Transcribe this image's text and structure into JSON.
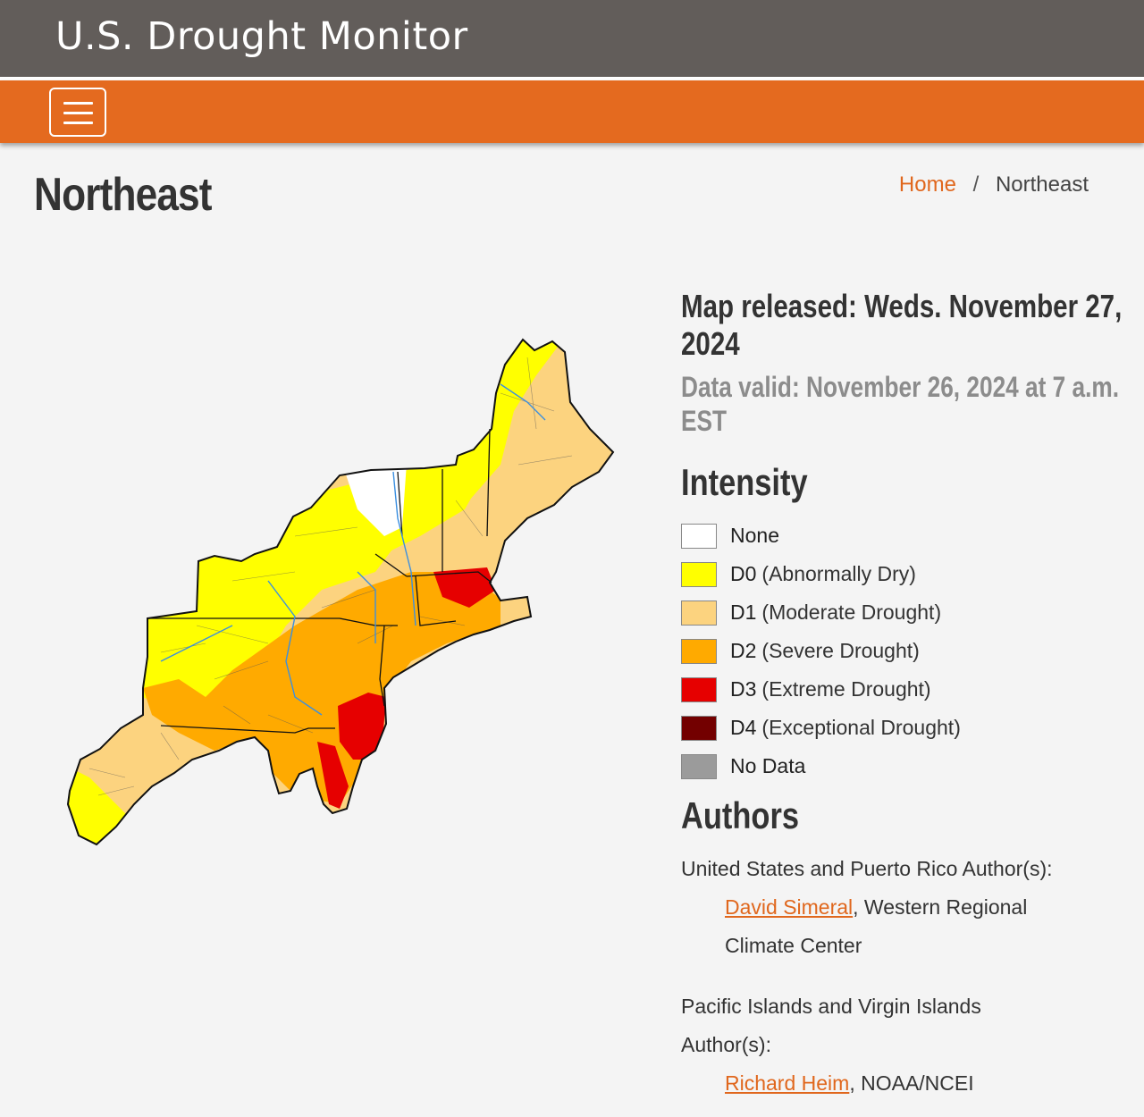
{
  "header": {
    "site_title": "U.S. Drought Monitor",
    "menu_icon": "hamburger-menu-icon",
    "bar_color": "#625d5a",
    "nav_color": "#e46a1f"
  },
  "page": {
    "title": "Northeast",
    "breadcrumb": {
      "home": "Home",
      "separator": "/",
      "current": "Northeast"
    }
  },
  "map_info": {
    "released": "Map released: Weds. November 27, 2024",
    "valid": "Data valid: November 26, 2024 at 7 a.m. EST"
  },
  "intensity": {
    "heading": "Intensity",
    "items": [
      {
        "code": "None",
        "desc": "",
        "color": "#ffffff"
      },
      {
        "code": "D0",
        "desc": "(Abnormally Dry)",
        "color": "#ffff00"
      },
      {
        "code": "D1",
        "desc": "(Moderate Drought)",
        "color": "#fcd37f"
      },
      {
        "code": "D2",
        "desc": "(Severe Drought)",
        "color": "#ffaa00"
      },
      {
        "code": "D3",
        "desc": "(Extreme Drought)",
        "color": "#e60000"
      },
      {
        "code": "D4",
        "desc": "(Exceptional Drought)",
        "color": "#730000"
      },
      {
        "code": "No Data",
        "desc": "",
        "color": "#9b9b9b"
      }
    ]
  },
  "authors": {
    "heading": "Authors",
    "us_label": "United States and Puerto Rico Author(s):",
    "us_author_name": "David Simeral",
    "us_author_org_1": ", Western Regional",
    "us_author_org_2": "Climate Center",
    "pi_label_1": "Pacific Islands and Virgin Islands",
    "pi_label_2": "Author(s):",
    "pi_author_name": "Richard Heim",
    "pi_author_org": ", NOAA/NCEI"
  }
}
